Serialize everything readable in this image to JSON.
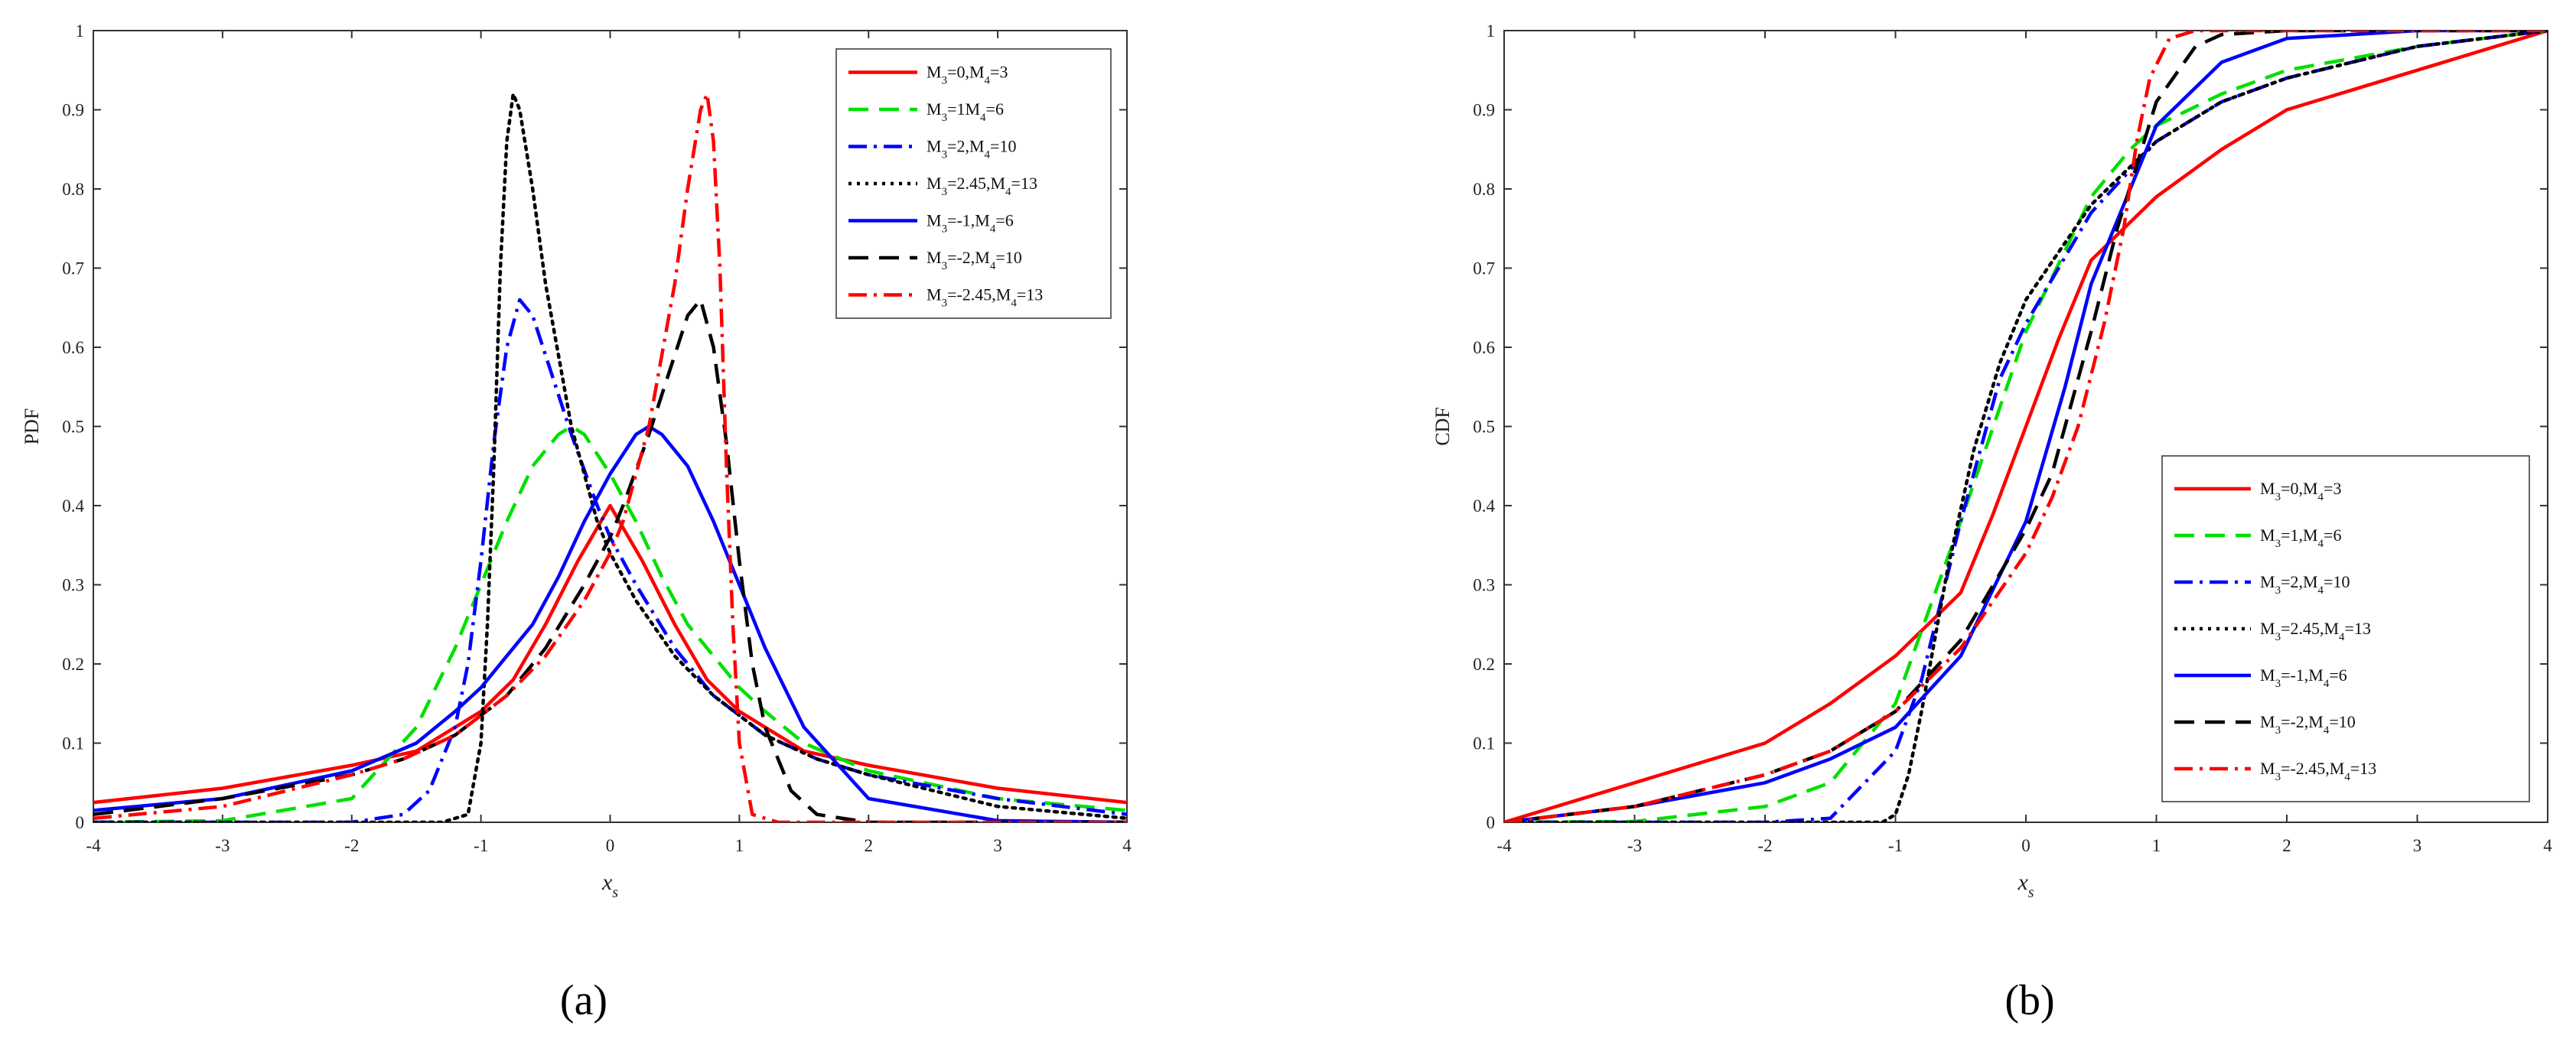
{
  "panel_labels": [
    "(a)",
    "(b)"
  ],
  "series_styles": [
    {
      "color": "#ff0000",
      "dash": "solid"
    },
    {
      "color": "#00e000",
      "dash": "dashed"
    },
    {
      "color": "#0000ff",
      "dash": "dashdot"
    },
    {
      "color": "#000000",
      "dash": "dotted"
    },
    {
      "color": "#0000ff",
      "dash": "solid"
    },
    {
      "color": "#000000",
      "dash": "dashed"
    },
    {
      "color": "#ff0000",
      "dash": "dashdot"
    }
  ],
  "chart_data": [
    {
      "type": "line",
      "panel": "(a)",
      "xlabel": "x",
      "xlabel_subscript": "s",
      "ylabel": "PDF",
      "xlim": [
        -4,
        4
      ],
      "ylim": [
        0,
        1
      ],
      "xticks": [
        "-4",
        "-3",
        "-2",
        "-1",
        "0",
        "1",
        "2",
        "3",
        "4"
      ],
      "yticks": [
        "0",
        "0.1",
        "0.2",
        "0.3",
        "0.4",
        "0.5",
        "0.6",
        "0.7",
        "0.8",
        "0.9",
        "1"
      ],
      "grid": false,
      "legend_position": "top-right",
      "series": [
        {
          "legend": {
            "a": "M",
            "a_sub": "3",
            "b": "=0,M",
            "b_sub": "4",
            "c": "=3"
          },
          "x": [
            -4,
            -3,
            -2,
            -1.5,
            -1,
            -0.75,
            -0.5,
            -0.25,
            0,
            0.25,
            0.5,
            0.75,
            1,
            1.5,
            2,
            3,
            4
          ],
          "y": [
            0.025,
            0.043,
            0.072,
            0.09,
            0.14,
            0.18,
            0.25,
            0.33,
            0.4,
            0.33,
            0.25,
            0.18,
            0.14,
            0.09,
            0.072,
            0.043,
            0.025
          ]
        },
        {
          "legend": {
            "a": "M",
            "a_sub": "3",
            "b": "=1M",
            "b_sub": "4",
            "c": "=6"
          },
          "x": [
            -4,
            -3,
            -2,
            -1.5,
            -1.2,
            -1,
            -0.8,
            -0.6,
            -0.4,
            -0.3,
            -0.2,
            0,
            0.2,
            0.4,
            0.6,
            0.8,
            1,
            1.2,
            1.5,
            2,
            3,
            4
          ],
          "y": [
            0,
            0.002,
            0.03,
            0.12,
            0.22,
            0.3,
            0.38,
            0.45,
            0.49,
            0.5,
            0.49,
            0.44,
            0.38,
            0.31,
            0.25,
            0.21,
            0.17,
            0.14,
            0.1,
            0.065,
            0.03,
            0.015
          ]
        },
        {
          "legend": {
            "a": "M",
            "a_sub": "3",
            "b": "=2,M",
            "b_sub": "4",
            "c": "=10"
          },
          "x": [
            -4,
            -2,
            -1.6,
            -1.4,
            -1.2,
            -1.1,
            -1,
            -0.9,
            -0.8,
            -0.7,
            -0.6,
            -0.5,
            -0.3,
            -0.1,
            0,
            0.2,
            0.5,
            0.8,
            1.2,
            1.6,
            2,
            3,
            4
          ],
          "y": [
            0,
            0,
            0.01,
            0.04,
            0.12,
            0.2,
            0.33,
            0.48,
            0.6,
            0.66,
            0.64,
            0.59,
            0.49,
            0.4,
            0.36,
            0.3,
            0.22,
            0.16,
            0.11,
            0.08,
            0.06,
            0.03,
            0.01
          ]
        },
        {
          "legend": {
            "a": "M",
            "a_sub": "3",
            "b": "=2.45,M",
            "b_sub": "4",
            "c": "=13"
          },
          "x": [
            -4,
            -1.3,
            -1.1,
            -1,
            -0.95,
            -0.9,
            -0.85,
            -0.8,
            -0.75,
            -0.7,
            -0.6,
            -0.5,
            -0.3,
            -0.1,
            0,
            0.2,
            0.5,
            0.8,
            1.2,
            1.6,
            2,
            3,
            4
          ],
          "y": [
            0,
            0,
            0.01,
            0.1,
            0.25,
            0.45,
            0.7,
            0.86,
            0.92,
            0.9,
            0.8,
            0.68,
            0.5,
            0.38,
            0.34,
            0.28,
            0.21,
            0.16,
            0.11,
            0.08,
            0.06,
            0.02,
            0.005
          ]
        },
        {
          "legend": {
            "a": "M",
            "a_sub": "3",
            "b": "=-1,M",
            "b_sub": "4",
            "c": "=6"
          },
          "x": [
            -4,
            -3,
            -2,
            -1.5,
            -1.2,
            -1,
            -0.8,
            -0.6,
            -0.4,
            -0.2,
            0,
            0.2,
            0.3,
            0.4,
            0.6,
            0.8,
            1,
            1.2,
            1.5,
            2,
            3,
            4
          ],
          "y": [
            0.015,
            0.03,
            0.065,
            0.1,
            0.14,
            0.17,
            0.21,
            0.25,
            0.31,
            0.38,
            0.44,
            0.49,
            0.5,
            0.49,
            0.45,
            0.38,
            0.3,
            0.22,
            0.12,
            0.03,
            0.002,
            0
          ]
        },
        {
          "legend": {
            "a": "M",
            "a_sub": "3",
            "b": "=-2,M",
            "b_sub": "4",
            "c": "=10"
          },
          "x": [
            -4,
            -3,
            -2,
            -1.6,
            -1.2,
            -0.8,
            -0.5,
            -0.2,
            0,
            0.1,
            0.3,
            0.5,
            0.6,
            0.7,
            0.8,
            0.9,
            1,
            1.1,
            1.2,
            1.4,
            1.6,
            2,
            4
          ],
          "y": [
            0.01,
            0.03,
            0.06,
            0.08,
            0.11,
            0.16,
            0.22,
            0.3,
            0.36,
            0.4,
            0.49,
            0.59,
            0.64,
            0.66,
            0.6,
            0.48,
            0.33,
            0.2,
            0.12,
            0.04,
            0.01,
            0,
            0
          ]
        },
        {
          "legend": {
            "a": "M",
            "a_sub": "3",
            "b": "=-2.45,M",
            "b_sub": "4",
            "c": "=13"
          },
          "x": [
            -4,
            -3,
            -2,
            -1.6,
            -1.2,
            -0.8,
            -0.5,
            -0.2,
            0,
            0.1,
            0.3,
            0.5,
            0.6,
            0.7,
            0.75,
            0.8,
            0.85,
            0.9,
            0.95,
            1,
            1.1,
            1.3,
            4
          ],
          "y": [
            0.005,
            0.02,
            0.06,
            0.08,
            0.11,
            0.16,
            0.21,
            0.28,
            0.34,
            0.38,
            0.5,
            0.68,
            0.8,
            0.9,
            0.92,
            0.86,
            0.7,
            0.45,
            0.25,
            0.1,
            0.01,
            0,
            0
          ]
        }
      ]
    },
    {
      "type": "line",
      "panel": "(b)",
      "xlabel": "x",
      "xlabel_subscript": "s",
      "ylabel": "CDF",
      "xlim": [
        -4,
        4
      ],
      "ylim": [
        0,
        1
      ],
      "xticks": [
        "-4",
        "-3",
        "-2",
        "-1",
        "0",
        "1",
        "2",
        "3",
        "4"
      ],
      "yticks": [
        "0",
        "0.1",
        "0.2",
        "0.3",
        "0.4",
        "0.5",
        "0.6",
        "0.7",
        "0.8",
        "0.9",
        "1"
      ],
      "grid": false,
      "legend_position": "bottom-right",
      "series": [
        {
          "legend": {
            "a": "M",
            "a_sub": "3",
            "b": "=0,M",
            "b_sub": "4",
            "c": "=3"
          },
          "x": [
            -4,
            -3,
            -2,
            -1.5,
            -1,
            -0.5,
            -0.25,
            0,
            0.25,
            0.5,
            1,
            1.5,
            2,
            3,
            4
          ],
          "y": [
            0,
            0.05,
            0.1,
            0.15,
            0.21,
            0.29,
            0.39,
            0.5,
            0.61,
            0.71,
            0.79,
            0.85,
            0.9,
            0.95,
            1
          ]
        },
        {
          "legend": {
            "a": "M",
            "a_sub": "3",
            "b": "=1,M",
            "b_sub": "4",
            "c": "=6"
          },
          "x": [
            -4,
            -3,
            -2,
            -1.5,
            -1,
            -0.5,
            0,
            0.5,
            0.8,
            1,
            1.5,
            2,
            3,
            4
          ],
          "y": [
            0,
            0.001,
            0.02,
            0.05,
            0.15,
            0.38,
            0.62,
            0.79,
            0.85,
            0.88,
            0.92,
            0.95,
            0.98,
            1
          ]
        },
        {
          "legend": {
            "a": "M",
            "a_sub": "3",
            "b": "=2,M",
            "b_sub": "4",
            "c": "=10"
          },
          "x": [
            -4,
            -2,
            -1.5,
            -1,
            -0.8,
            -0.5,
            -0.2,
            0,
            0.5,
            1,
            1.5,
            2,
            3,
            4
          ],
          "y": [
            0,
            0,
            0.005,
            0.09,
            0.18,
            0.38,
            0.56,
            0.63,
            0.77,
            0.86,
            0.91,
            0.94,
            0.98,
            1
          ]
        },
        {
          "legend": {
            "a": "M",
            "a_sub": "3",
            "b": "=2.45,M",
            "b_sub": "4",
            "c": "=13"
          },
          "x": [
            -4,
            -1.3,
            -1.1,
            -1,
            -0.9,
            -0.8,
            -0.6,
            -0.4,
            -0.2,
            0,
            0.5,
            1,
            1.5,
            2,
            3,
            4
          ],
          "y": [
            0,
            0,
            0,
            0.01,
            0.06,
            0.14,
            0.32,
            0.47,
            0.58,
            0.66,
            0.78,
            0.86,
            0.91,
            0.94,
            0.98,
            1
          ]
        },
        {
          "legend": {
            "a": "M",
            "a_sub": "3",
            "b": "=-1,M",
            "b_sub": "4",
            "c": "=6"
          },
          "x": [
            -4,
            -3,
            -2,
            -1.5,
            -1,
            -0.5,
            0,
            0.3,
            0.5,
            0.8,
            1,
            1.5,
            2,
            3,
            4
          ],
          "y": [
            0,
            0.02,
            0.05,
            0.08,
            0.12,
            0.21,
            0.38,
            0.55,
            0.68,
            0.8,
            0.88,
            0.96,
            0.99,
            1,
            1
          ]
        },
        {
          "legend": {
            "a": "M",
            "a_sub": "3",
            "b": "=-2,M",
            "b_sub": "4",
            "c": "=10"
          },
          "x": [
            -4,
            -3,
            -2,
            -1.5,
            -1,
            -0.5,
            0,
            0.2,
            0.5,
            0.7,
            1,
            1.3,
            1.5,
            2,
            4
          ],
          "y": [
            0,
            0.02,
            0.06,
            0.09,
            0.14,
            0.23,
            0.37,
            0.44,
            0.62,
            0.75,
            0.91,
            0.98,
            0.995,
            1,
            1
          ]
        },
        {
          "legend": {
            "a": "M",
            "a_sub": "3",
            "b": "=-2.45,M",
            "b_sub": "4",
            "c": "=13"
          },
          "x": [
            -4,
            -3,
            -2,
            -1.5,
            -1,
            -0.5,
            0,
            0.2,
            0.4,
            0.6,
            0.75,
            0.85,
            0.95,
            1.1,
            1.3,
            4
          ],
          "y": [
            0,
            0.02,
            0.06,
            0.09,
            0.14,
            0.22,
            0.34,
            0.41,
            0.5,
            0.63,
            0.75,
            0.86,
            0.94,
            0.99,
            1,
            1
          ]
        }
      ]
    }
  ]
}
